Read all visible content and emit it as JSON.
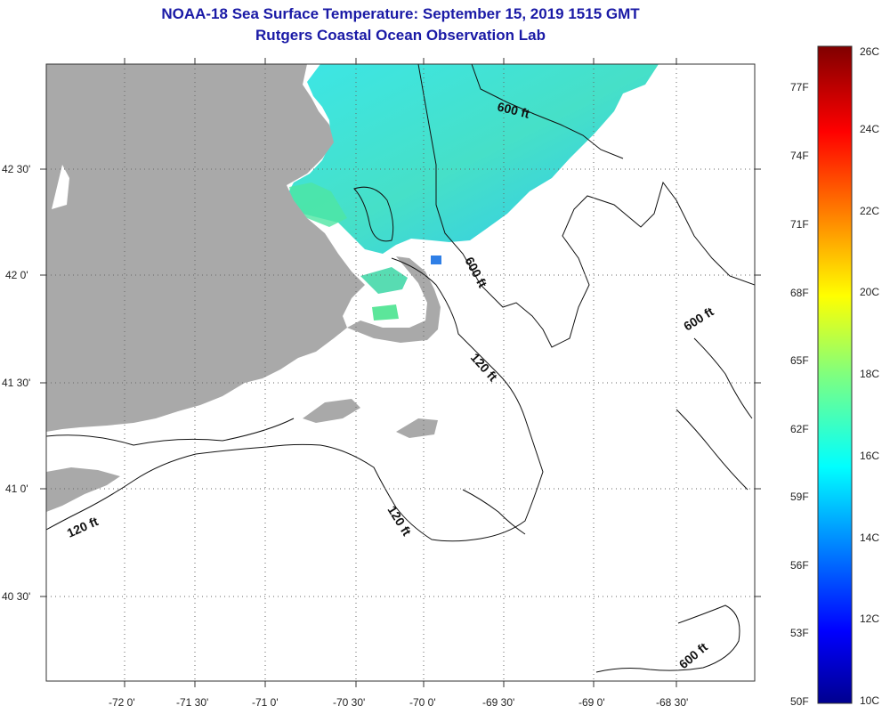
{
  "title": {
    "line1": "NOAA-18 Sea Surface Temperature:  September 15, 2019 1515 GMT",
    "line2": "Rutgers Coastal Ocean Observation Lab"
  },
  "map": {
    "lon_labels": [
      "-72 0'",
      "-71 30'",
      "-71 0'",
      "-70 30'",
      "-70 0'",
      "-69 30'",
      "-69 0'",
      "-68 30'"
    ],
    "lat_labels": [
      "42 30'",
      "42 0'",
      "41 30'",
      "41 0'",
      "40 30'"
    ],
    "contour_labels": [
      "600 ft",
      "600 ft",
      "600 ft",
      "600 ft",
      "120 ft",
      "120 ft",
      "120 ft"
    ],
    "colors": {
      "land": "#a9a9a9",
      "ocean": "#ffffff",
      "sst_cyan": "#38e6e6",
      "sst_green": "#5ce69a",
      "title": "#1a1aa6"
    }
  },
  "colorbar": {
    "f_labels": [
      "77F",
      "74F",
      "71F",
      "68F",
      "65F",
      "62F",
      "59F",
      "56F",
      "53F",
      "50F"
    ],
    "c_labels": [
      "26C",
      "24C",
      "22C",
      "20C",
      "18C",
      "16C",
      "14C",
      "12C",
      "10C"
    ]
  }
}
